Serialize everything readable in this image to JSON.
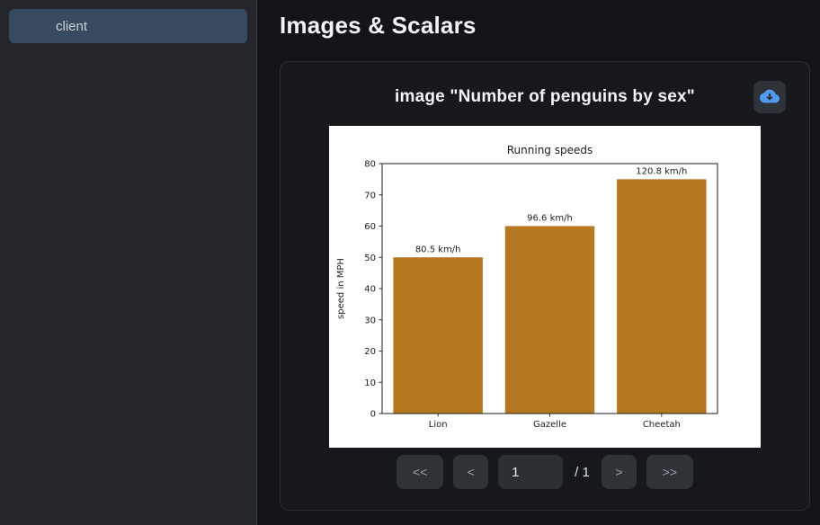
{
  "sidebar": {
    "items": [
      {
        "label": "client",
        "active": true
      }
    ]
  },
  "header": {
    "title": "Images & Scalars"
  },
  "card": {
    "title": "image \"Number of penguins by sex\"",
    "download_icon": "cloud-download-icon",
    "pagination": {
      "first_label": "<<",
      "prev_label": "<",
      "page_value": "1",
      "total_label": "/ 1",
      "next_label": ">",
      "last_label": ">>"
    }
  },
  "chart_data": {
    "type": "bar",
    "title": "Running speeds",
    "xlabel": "",
    "ylabel": "speed in MPH",
    "categories": [
      "Lion",
      "Gazelle",
      "Cheetah"
    ],
    "values": [
      50,
      60,
      75
    ],
    "bar_labels": [
      "80.5 km/h",
      "96.6 km/h",
      "120.8 km/h"
    ],
    "ylim": [
      0,
      80
    ],
    "ytick_step": 10,
    "grid": false,
    "legend": false,
    "bar_color": "#b5771f",
    "background": "#ffffff"
  },
  "colors": {
    "accent_blue": "#4f9cf0",
    "sidebar_active": "#364a60",
    "bar_color": "#b5771f"
  }
}
